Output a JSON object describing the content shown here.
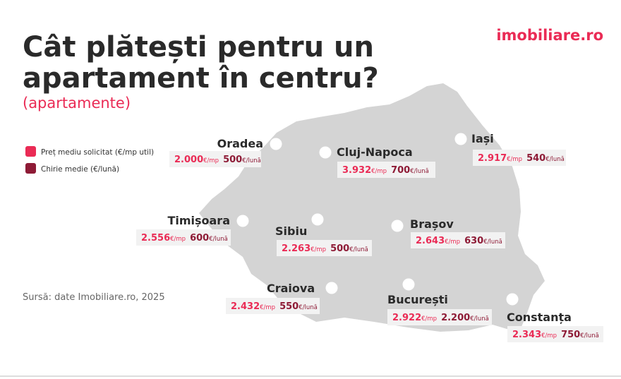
{
  "header": {
    "title_line1": "Cât plătești pentru un",
    "title_line2": "apartament în centru?",
    "subtitle": "(apartamente)",
    "logo": "imobiliare.ro"
  },
  "legend": [
    {
      "label": "Preț mediu solicitat (€/mp util)",
      "color": "#ea2b55"
    },
    {
      "label": "Chirie medie (€/lună)",
      "color": "#8e1b36"
    }
  ],
  "units": {
    "price": "€/mp",
    "rent": "€/lună"
  },
  "cities": [
    {
      "name": "Oradea",
      "price": "2.000",
      "rent": "500"
    },
    {
      "name": "Cluj-Napoca",
      "price": "3.932",
      "rent": "700"
    },
    {
      "name": "Iași",
      "price": "2.917",
      "rent": "540"
    },
    {
      "name": "Timișoara",
      "price": "2.556",
      "rent": "600"
    },
    {
      "name": "Sibiu",
      "price": "2.263",
      "rent": "500"
    },
    {
      "name": "Brașov",
      "price": "2.643",
      "rent": "630"
    },
    {
      "name": "Craiova",
      "price": "2.432",
      "rent": "550"
    },
    {
      "name": "București",
      "price": "2.922",
      "rent": "2.200"
    },
    {
      "name": "Constanța",
      "price": "2.343",
      "rent": "750"
    }
  ],
  "source": "Sursă: date Imobiliare.ro, 2025"
}
